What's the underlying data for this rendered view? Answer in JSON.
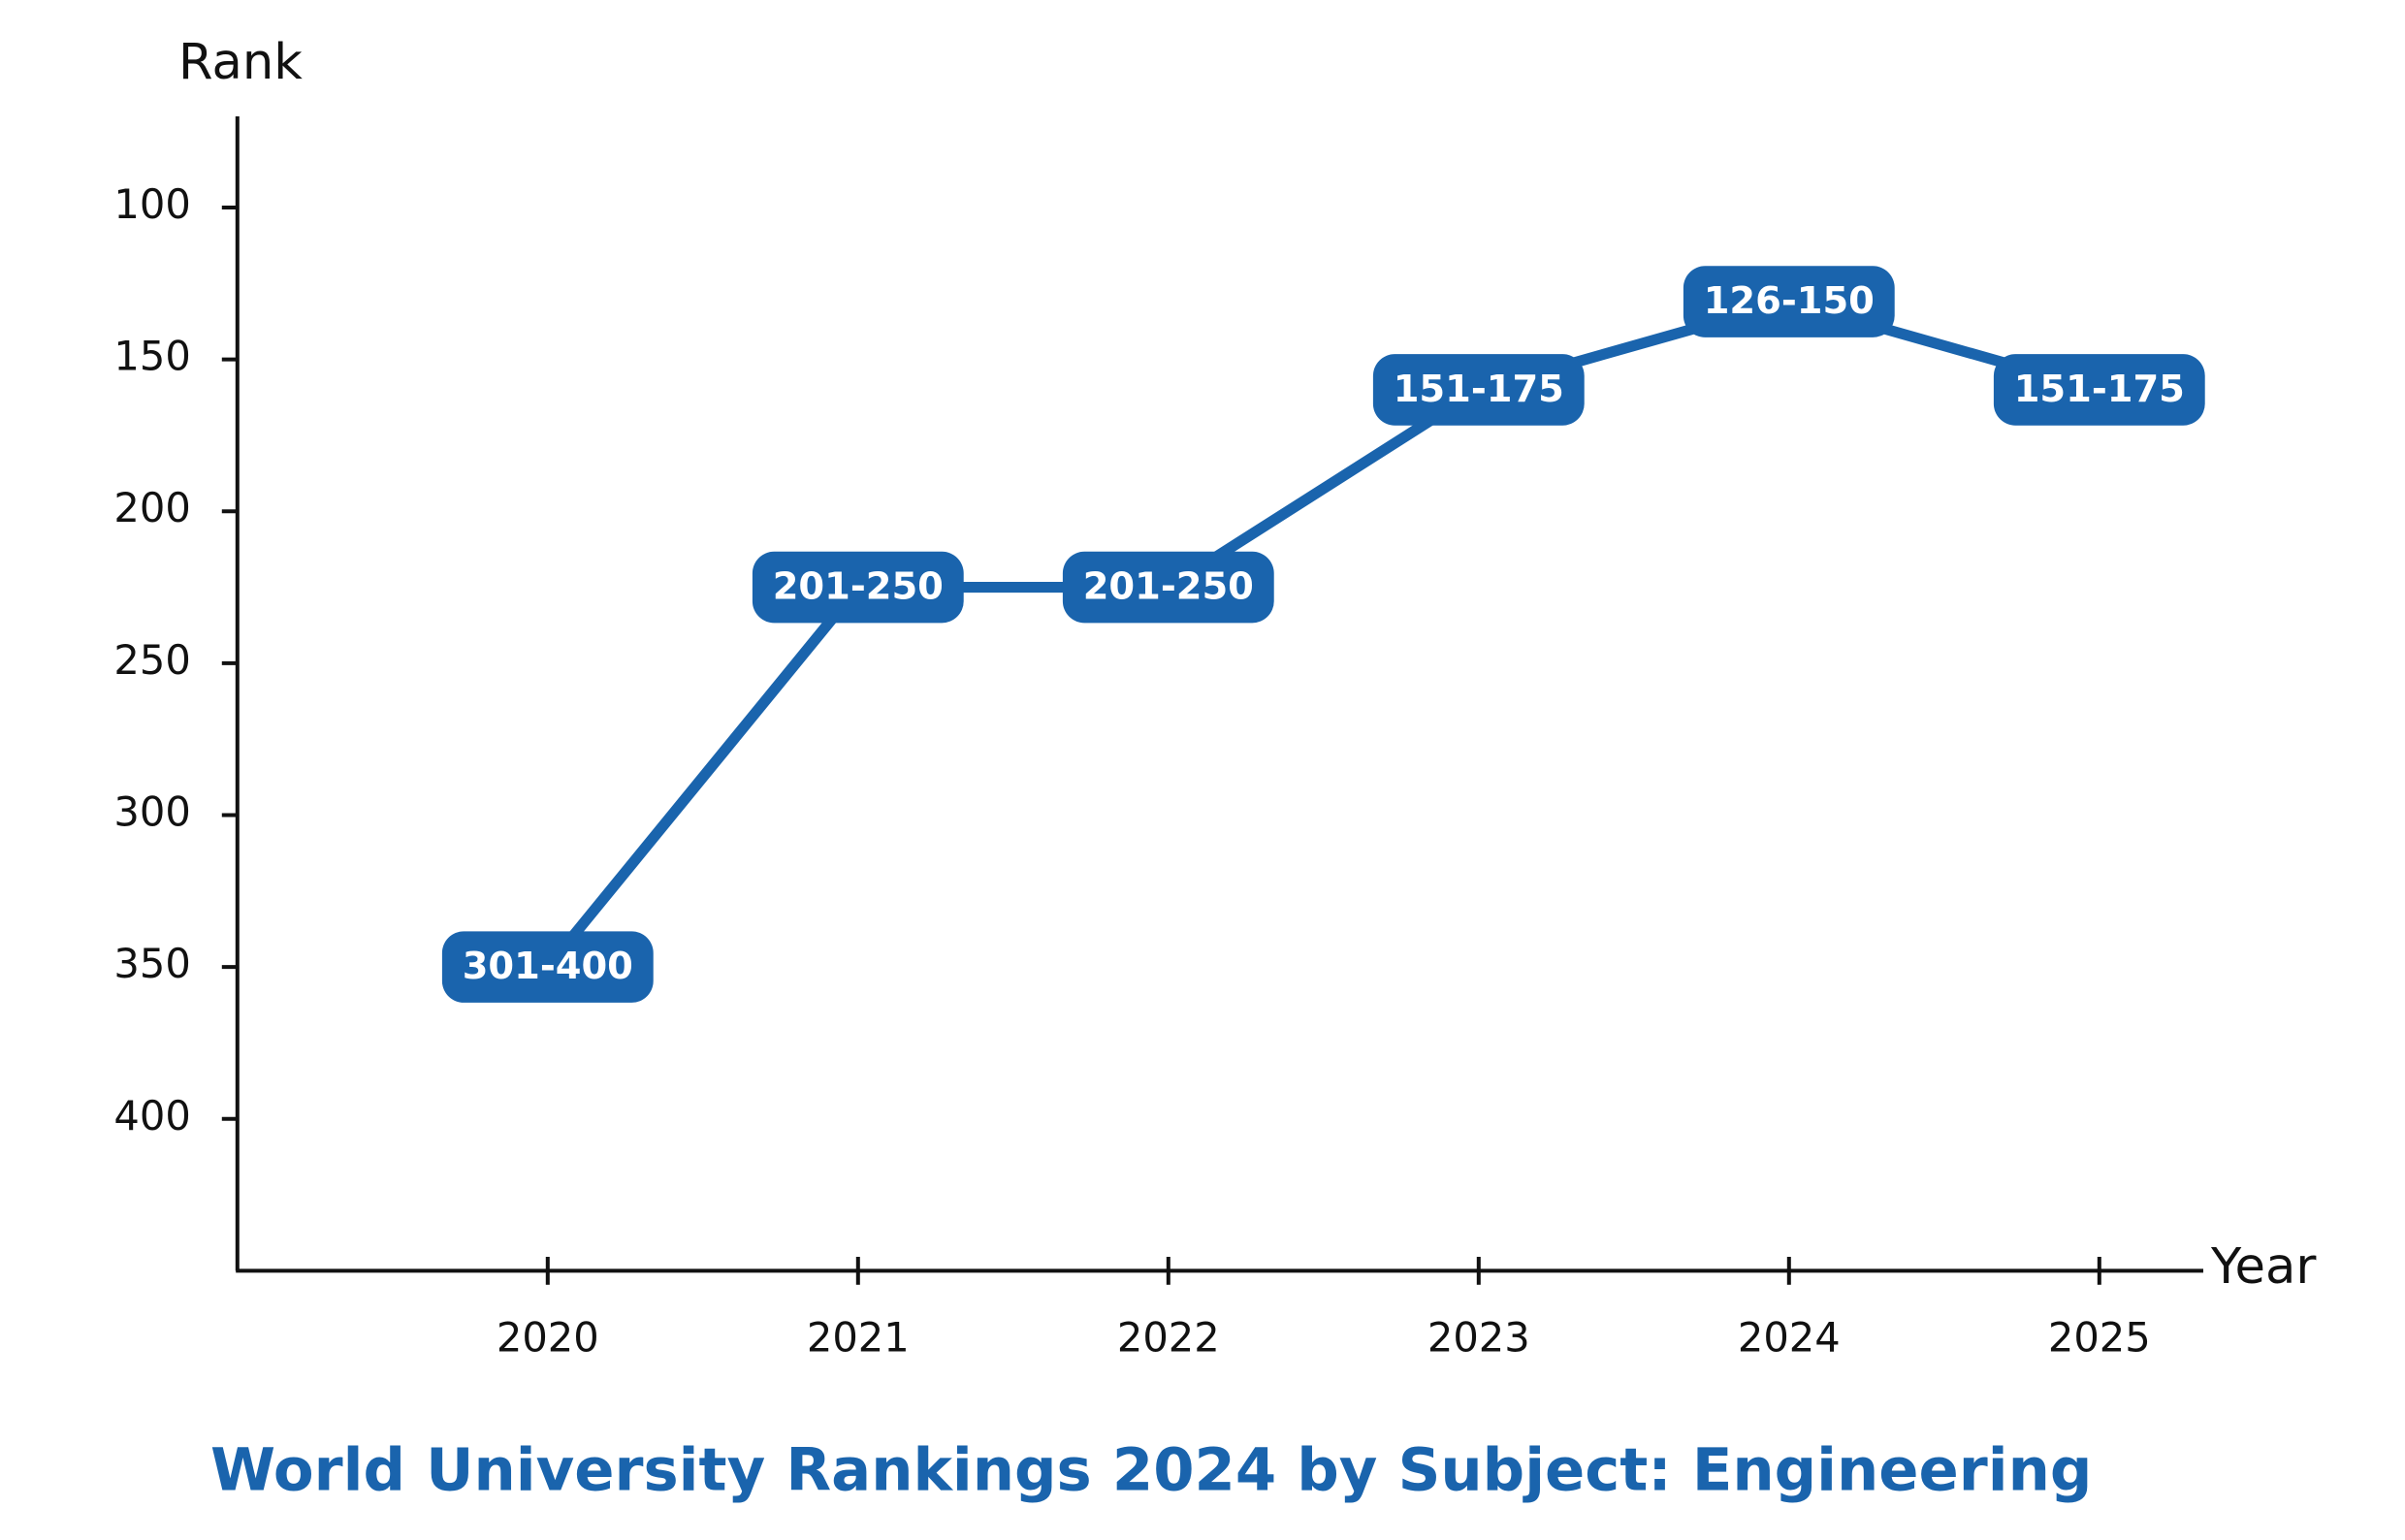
{
  "chart_data": {
    "type": "line",
    "title": "World University Rankings 2024 by Subject: Engineering",
    "x_label": "Year",
    "y_label": "Rank",
    "categories": [
      "2020",
      "2021",
      "2022",
      "2023",
      "2024",
      "2025"
    ],
    "series": [
      {
        "name": "Rank",
        "color": "#1a64ad",
        "values": [
          350,
          225,
          225,
          160,
          131,
          160
        ],
        "value_labels": [
          "301-400",
          "201-250",
          "201-250",
          "151-175",
          "126-150",
          "151-175"
        ]
      }
    ],
    "ylim": [
      450,
      70
    ],
    "yticks": [
      100,
      150,
      200,
      250,
      300,
      350,
      400
    ],
    "y_inverted": true,
    "grid": false
  }
}
